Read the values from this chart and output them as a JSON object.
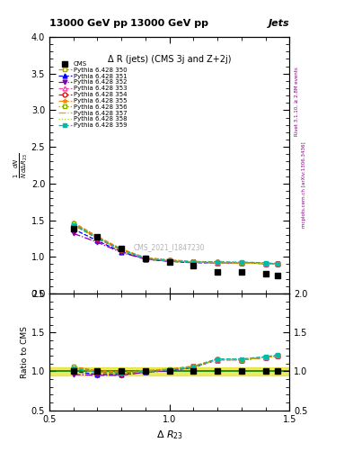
{
  "title_top": "13000 GeV pp",
  "title_right": "Jets",
  "plot_title": "Δ R (jets) (CMS 3j and Z+2j)",
  "ylabel_main": "$\\frac{1}{N}\\frac{dN}{d\\Delta R_{23}}$",
  "ylabel_ratio": "Ratio to CMS",
  "xlabel": "$\\Delta\\ R_{23}$",
  "watermark": "CMS_2021_I1847230",
  "right_label": "mcplots.cern.ch [arXiv:1306.3436]",
  "right_label2": "Rivet 3.1.10, ≥ 2.8M events",
  "xlim": [
    0.5,
    1.5
  ],
  "ylim_main": [
    0.5,
    4.0
  ],
  "ylim_ratio": [
    0.5,
    2.0
  ],
  "x_data": [
    0.6,
    0.7,
    0.8,
    0.9,
    1.0,
    1.1,
    1.2,
    1.3,
    1.4,
    1.45
  ],
  "cms_y": [
    1.38,
    1.27,
    1.12,
    0.98,
    0.93,
    0.88,
    0.8,
    0.8,
    0.77,
    0.75
  ],
  "series": [
    {
      "label": "Pythia 6.428 350",
      "color": "#aaaa00",
      "linestyle": "--",
      "marker": "s",
      "markerfacecolor": "white",
      "y_main": [
        1.45,
        1.27,
        1.1,
        0.98,
        0.95,
        0.93,
        0.92,
        0.92,
        0.91,
        0.9
      ],
      "y_ratio": [
        1.05,
        1.0,
        0.98,
        1.0,
        1.02,
        1.06,
        1.15,
        1.15,
        1.18,
        1.2
      ]
    },
    {
      "label": "Pythia 6.428 351",
      "color": "#0000ff",
      "linestyle": "--",
      "marker": "^",
      "markerfacecolor": "#0000ff",
      "y_main": [
        1.38,
        1.22,
        1.07,
        0.97,
        0.94,
        0.92,
        0.92,
        0.92,
        0.91,
        0.9
      ],
      "y_ratio": [
        1.0,
        0.96,
        0.96,
        0.99,
        1.01,
        1.05,
        1.15,
        1.15,
        1.18,
        1.2
      ]
    },
    {
      "label": "Pythia 6.428 352",
      "color": "#8800aa",
      "linestyle": "-.",
      "marker": "v",
      "markerfacecolor": "#8800aa",
      "y_main": [
        1.32,
        1.2,
        1.06,
        0.97,
        0.94,
        0.93,
        0.92,
        0.92,
        0.91,
        0.9
      ],
      "y_ratio": [
        0.96,
        0.95,
        0.95,
        0.99,
        1.01,
        1.06,
        1.15,
        1.15,
        1.18,
        1.2
      ]
    },
    {
      "label": "Pythia 6.428 353",
      "color": "#ff44aa",
      "linestyle": "--",
      "marker": "^",
      "markerfacecolor": "white",
      "y_main": [
        1.46,
        1.27,
        1.1,
        0.98,
        0.95,
        0.93,
        0.92,
        0.92,
        0.91,
        0.9
      ],
      "y_ratio": [
        1.06,
        1.0,
        0.98,
        1.0,
        1.02,
        1.06,
        1.15,
        1.15,
        1.18,
        1.2
      ]
    },
    {
      "label": "Pythia 6.428 354",
      "color": "#ff0000",
      "linestyle": "--",
      "marker": "o",
      "markerfacecolor": "white",
      "y_main": [
        1.44,
        1.25,
        1.09,
        0.98,
        0.95,
        0.93,
        0.93,
        0.92,
        0.91,
        0.9
      ],
      "y_ratio": [
        1.04,
        0.99,
        0.97,
        1.0,
        1.02,
        1.06,
        1.16,
        1.15,
        1.18,
        1.2
      ]
    },
    {
      "label": "Pythia 6.428 355",
      "color": "#ff8800",
      "linestyle": "--",
      "marker": "*",
      "markerfacecolor": "#ff8800",
      "y_main": [
        1.47,
        1.28,
        1.11,
        0.99,
        0.96,
        0.94,
        0.93,
        0.92,
        0.91,
        0.9
      ],
      "y_ratio": [
        1.06,
        1.01,
        0.99,
        1.01,
        1.03,
        1.07,
        1.16,
        1.15,
        1.18,
        1.2
      ]
    },
    {
      "label": "Pythia 6.428 356",
      "color": "#88aa00",
      "linestyle": ":",
      "marker": "s",
      "markerfacecolor": "white",
      "y_main": [
        1.46,
        1.27,
        1.1,
        0.99,
        0.96,
        0.93,
        0.93,
        0.92,
        0.91,
        0.9
      ],
      "y_ratio": [
        1.06,
        1.0,
        0.98,
        1.01,
        1.03,
        1.06,
        1.16,
        1.15,
        1.18,
        1.2
      ]
    },
    {
      "label": "Pythia 6.428 357",
      "color": "#ddaa00",
      "linestyle": "-.",
      "marker": "None",
      "markerfacecolor": "#ddaa00",
      "y_main": [
        1.44,
        1.26,
        1.09,
        0.98,
        0.95,
        0.93,
        0.92,
        0.92,
        0.91,
        0.9
      ],
      "y_ratio": [
        1.04,
        0.99,
        0.97,
        1.0,
        1.02,
        1.06,
        1.15,
        1.15,
        1.18,
        1.2
      ]
    },
    {
      "label": "Pythia 6.428 358",
      "color": "#aadd00",
      "linestyle": ":",
      "marker": "None",
      "markerfacecolor": "#aadd00",
      "y_main": [
        1.43,
        1.26,
        1.09,
        0.98,
        0.95,
        0.93,
        0.92,
        0.92,
        0.91,
        0.9
      ],
      "y_ratio": [
        1.04,
        0.99,
        0.97,
        1.0,
        1.02,
        1.06,
        1.15,
        1.15,
        1.18,
        1.2
      ]
    },
    {
      "label": "Pythia 6.428 359",
      "color": "#00bbaa",
      "linestyle": "--",
      "marker": "s",
      "markerfacecolor": "#00bbaa",
      "y_main": [
        1.44,
        1.26,
        1.1,
        0.98,
        0.95,
        0.93,
        0.93,
        0.93,
        0.92,
        0.91
      ],
      "y_ratio": [
        1.04,
        0.99,
        0.98,
        1.0,
        1.02,
        1.06,
        1.16,
        1.16,
        1.19,
        1.21
      ]
    }
  ],
  "cms_color": "#000000",
  "band_color": "#dddd00",
  "band_alpha": 0.6
}
